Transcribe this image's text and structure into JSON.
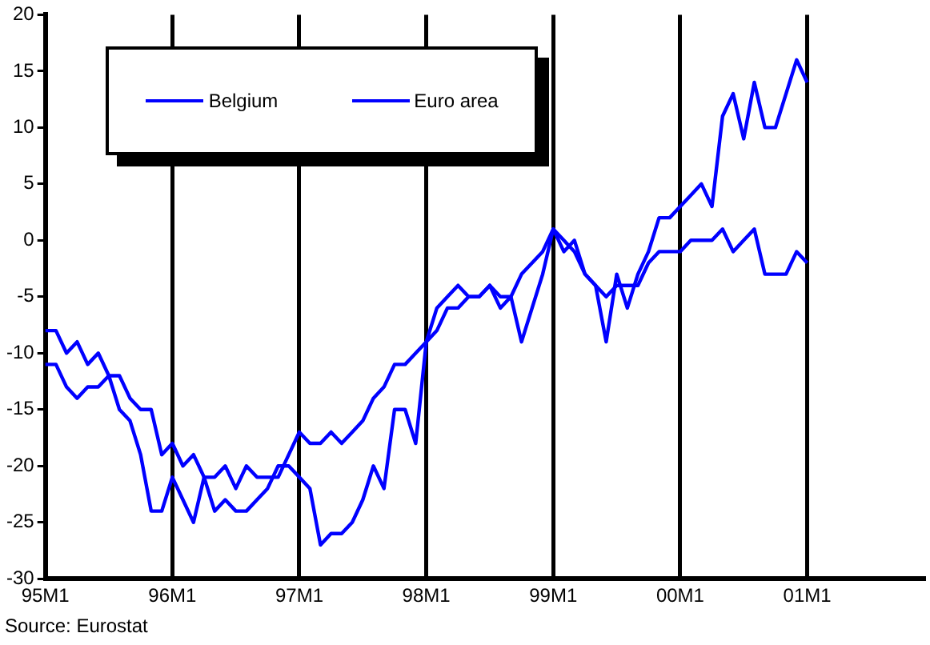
{
  "chart_data": {
    "type": "line",
    "categories": [
      "95M1",
      null,
      null,
      null,
      null,
      null,
      null,
      null,
      null,
      null,
      null,
      null,
      "96M1",
      null,
      null,
      null,
      null,
      null,
      null,
      null,
      null,
      null,
      null,
      null,
      "97M1",
      null,
      null,
      null,
      null,
      null,
      null,
      null,
      null,
      null,
      null,
      null,
      "98M1",
      null,
      null,
      null,
      null,
      null,
      null,
      null,
      null,
      null,
      null,
      null,
      "99M1",
      null,
      null,
      null,
      null,
      null,
      null,
      null,
      null,
      null,
      null,
      null,
      "00M1",
      null,
      null,
      null,
      null,
      null,
      null,
      null,
      null,
      null,
      null,
      null,
      "01M1",
      null,
      null,
      null,
      null,
      null,
      null,
      null,
      null,
      null,
      null,
      null
    ],
    "series": [
      {
        "name": "Belgium",
        "color": "#0000ff",
        "values": [
          -8,
          -8,
          -10,
          -9,
          -11,
          -10,
          -12,
          -15,
          -16,
          -19,
          -24,
          -24,
          -21,
          -23,
          -25,
          -21,
          -24,
          -23,
          -24,
          -24,
          -23,
          -22,
          -20,
          -20,
          -21,
          -22,
          -27,
          -26,
          -26,
          -25,
          -23,
          -20,
          -22,
          -15,
          -15,
          -18,
          -9,
          -6,
          -5,
          -4,
          -5,
          -5,
          -4,
          -6,
          -5,
          -9,
          -6,
          -3,
          1,
          -1,
          0,
          -3,
          -4,
          -9,
          -3,
          -6,
          -3,
          -1,
          2,
          2,
          3,
          4,
          5,
          3,
          11,
          13,
          9,
          14,
          10,
          10,
          13,
          16,
          14,
          null,
          null,
          null,
          null,
          null,
          null,
          null,
          null,
          null,
          null,
          null
        ]
      },
      {
        "name": "Euro area",
        "color": "#0000ff",
        "values": [
          -11,
          -11,
          -13,
          -14,
          -13,
          -13,
          -12,
          -12,
          -14,
          -15,
          -15,
          -19,
          -18,
          -20,
          -19,
          -21,
          -21,
          -20,
          -22,
          -20,
          -21,
          -21,
          -21,
          -19,
          -17,
          -18,
          -18,
          -17,
          -18,
          -17,
          -16,
          -14,
          -13,
          -11,
          -11,
          -10,
          -9,
          -8,
          -6,
          -6,
          -5,
          -5,
          -4,
          -5,
          -5,
          -3,
          -2,
          -1,
          1,
          0,
          -1,
          -3,
          -4,
          -5,
          -4,
          -4,
          -4,
          -2,
          -1,
          -1,
          -1,
          0,
          0,
          0,
          1,
          -1,
          0,
          1,
          -3,
          -3,
          -3,
          -1,
          -2,
          null,
          null,
          null,
          null,
          null,
          null,
          null,
          null,
          null,
          null,
          null
        ]
      }
    ],
    "ylim": [
      -30,
      20
    ],
    "yticks": [
      -30,
      -25,
      -20,
      -15,
      -10,
      -5,
      0,
      5,
      10,
      15,
      20
    ],
    "grid": "x",
    "legend": "top left",
    "marker": "none",
    "line_style": "solid",
    "annotations": [
      "Source: Eurostat"
    ]
  }
}
